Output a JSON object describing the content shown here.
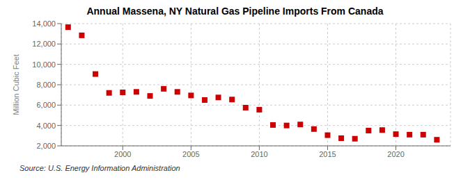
{
  "chart_data": {
    "type": "scatter",
    "title": "Annual Massena, NY Natural Gas Pipeline Imports From Canada",
    "ylabel": "Million Cubic Feet",
    "annotations": [
      "Source: U.S. Energy Information Administration"
    ],
    "x": [
      1996,
      1997,
      1998,
      1999,
      2000,
      2001,
      2002,
      2003,
      2004,
      2005,
      2006,
      2007,
      2008,
      2009,
      2010,
      2011,
      2012,
      2013,
      2014,
      2015,
      2016,
      2017,
      2018,
      2019,
      2020,
      2021,
      2022,
      2023
    ],
    "values": [
      13650,
      12850,
      9050,
      7200,
      7250,
      7300,
      6900,
      7600,
      7300,
      6950,
      6500,
      6750,
      6550,
      5750,
      5550,
      4050,
      4000,
      4100,
      3650,
      3050,
      2750,
      2700,
      3500,
      3550,
      3150,
      3100,
      3100,
      2600
    ],
    "color": "#cc0000",
    "marker": "square",
    "xlim": [
      1995.5,
      2024
    ],
    "xticks": [
      2000,
      2005,
      2010,
      2015,
      2020
    ],
    "ylim": [
      2000,
      14000
    ],
    "yticks": [
      {
        "value": 2000,
        "label": "2,000"
      },
      {
        "value": 4000,
        "label": "4,000"
      },
      {
        "value": 6000,
        "label": "6,000"
      },
      {
        "value": 8000,
        "label": "8,000"
      },
      {
        "value": 10000,
        "label": "10,000"
      },
      {
        "value": 12000,
        "label": "12,000"
      },
      {
        "value": 14000,
        "label": "14,000"
      }
    ],
    "grid": true
  }
}
